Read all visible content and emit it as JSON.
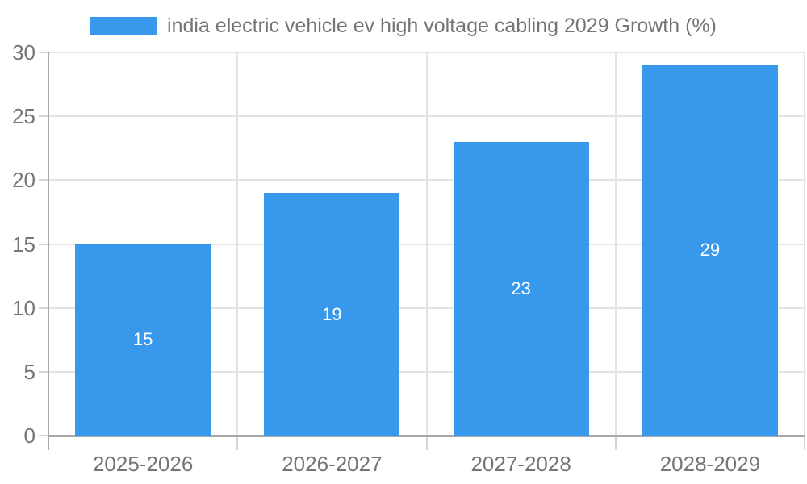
{
  "chart_data": {
    "type": "bar",
    "title": "india electric vehicle ev high voltage cabling 2029 Growth (%)",
    "series_name": "india electric vehicle ev high voltage cabling 2029 Growth (%)",
    "categories": [
      "2025-2026",
      "2026-2027",
      "2027-2028",
      "2028-2029"
    ],
    "values": [
      15,
      19,
      23,
      29
    ],
    "value_labels": [
      "15",
      "19",
      "23",
      "29"
    ],
    "xlabel": "",
    "ylabel": "",
    "ylim": [
      0,
      30
    ],
    "yticks": [
      0,
      5,
      10,
      15,
      20,
      25,
      30
    ],
    "ytick_labels": [
      "0",
      "5",
      "10",
      "15",
      "20",
      "25",
      "30"
    ],
    "grid": true,
    "legend_position": "top",
    "colors": {
      "bar": "#3899EC",
      "label_text": "#757575",
      "value_label_text": "#ffffff",
      "gridline": "#e3e3e3",
      "axis": "#a8a8a8",
      "tick": "#d4d4d4",
      "background": "#ffffff"
    }
  }
}
